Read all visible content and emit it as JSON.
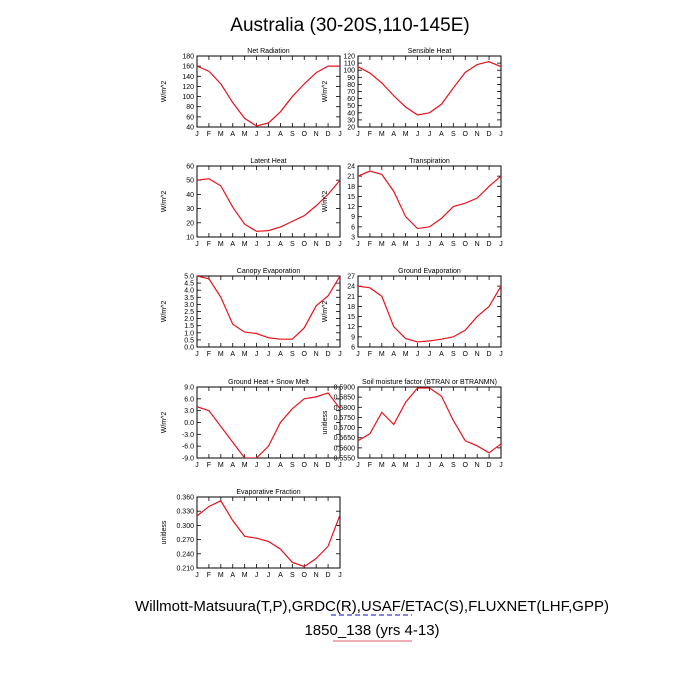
{
  "figure": {
    "title": "Australia (30-20S,110-145E)",
    "footer_line1": "Willmott-Matsuura(T,P),GRDC(R),USAF/ETAC(S),FLUXNET(LHF,GPP)",
    "footer_line2": "1850_138 (yrs 4-13)",
    "line_color": "#e8121a"
  },
  "chart_data": [
    {
      "type": "line",
      "title": "Net Radiation",
      "ylabel": "W/m^2",
      "categories": [
        "J",
        "F",
        "M",
        "A",
        "M",
        "J",
        "J",
        "A",
        "S",
        "O",
        "N",
        "D",
        "J"
      ],
      "values": [
        160,
        150,
        125,
        88,
        57,
        42,
        48,
        70,
        100,
        125,
        147,
        160,
        160
      ],
      "ylim": [
        40,
        180
      ],
      "yticks": [
        "40",
        "60",
        "80",
        "100",
        "120",
        "140",
        "160",
        "180"
      ]
    },
    {
      "type": "line",
      "title": "Sensible Heat",
      "ylabel": "W/m^2",
      "categories": [
        "J",
        "F",
        "M",
        "A",
        "M",
        "J",
        "J",
        "A",
        "S",
        "O",
        "N",
        "D",
        "J"
      ],
      "values": [
        105,
        96,
        82,
        64,
        48,
        37,
        40,
        52,
        75,
        97,
        108,
        112,
        105
      ],
      "ylim": [
        20,
        120
      ],
      "yticks": [
        "20",
        "30",
        "40",
        "50",
        "60",
        "70",
        "80",
        "90",
        "100",
        "110",
        "120"
      ]
    },
    {
      "type": "line",
      "title": "Latent Heat",
      "ylabel": "W/m^2",
      "categories": [
        "J",
        "F",
        "M",
        "A",
        "M",
        "J",
        "J",
        "A",
        "S",
        "O",
        "N",
        "D",
        "J"
      ],
      "values": [
        50,
        51,
        46,
        31,
        19,
        14,
        14.5,
        17,
        21,
        25,
        32,
        40,
        50
      ],
      "ylim": [
        10,
        60
      ],
      "yticks": [
        "10",
        "20",
        "30",
        "40",
        "50",
        "60"
      ]
    },
    {
      "type": "line",
      "title": "Transpiration",
      "ylabel": "W/m^2",
      "categories": [
        "J",
        "F",
        "M",
        "A",
        "M",
        "J",
        "J",
        "A",
        "S",
        "O",
        "N",
        "D",
        "J"
      ],
      "values": [
        21,
        22.5,
        21.5,
        16.5,
        9,
        5.5,
        6,
        8.5,
        12,
        13,
        14.5,
        18,
        21
      ],
      "ylim": [
        3,
        24
      ],
      "yticks": [
        "3",
        "6",
        "9",
        "12",
        "15",
        "18",
        "21",
        "24"
      ]
    },
    {
      "type": "line",
      "title": "Canopy Evaporation",
      "ylabel": "W/m^2",
      "categories": [
        "J",
        "F",
        "M",
        "A",
        "M",
        "J",
        "J",
        "A",
        "S",
        "O",
        "N",
        "D",
        "J"
      ],
      "values": [
        5.0,
        4.8,
        3.5,
        1.6,
        1.05,
        0.95,
        0.65,
        0.55,
        0.55,
        1.35,
        2.9,
        3.6,
        5.0
      ],
      "ylim": [
        0,
        5
      ],
      "yticks": [
        "0.0",
        "0.5",
        "1.0",
        "1.5",
        "2.0",
        "2.5",
        "3.0",
        "3.5",
        "4.0",
        "4.5",
        "5.0"
      ]
    },
    {
      "type": "line",
      "title": "Ground Evaporation",
      "ylabel": "W/m^2",
      "categories": [
        "J",
        "F",
        "M",
        "A",
        "M",
        "J",
        "J",
        "A",
        "S",
        "O",
        "N",
        "D",
        "J"
      ],
      "values": [
        24,
        23.5,
        21,
        12,
        8.5,
        7.5,
        7.8,
        8.3,
        9,
        11,
        15,
        18,
        24
      ],
      "ylim": [
        6,
        27
      ],
      "yticks": [
        "6",
        "9",
        "12",
        "15",
        "18",
        "21",
        "24",
        "27"
      ]
    },
    {
      "type": "line",
      "title": "Ground Heat + Snow Melt",
      "ylabel": "W/m^2",
      "categories": [
        "J",
        "F",
        "M",
        "A",
        "M",
        "J",
        "J",
        "A",
        "S",
        "O",
        "N",
        "D",
        "J"
      ],
      "values": [
        4,
        3,
        -1,
        -5,
        -9,
        -9,
        -6,
        0,
        3.5,
        6,
        6.5,
        7.5,
        3.5
      ],
      "ylim": [
        -9,
        9
      ],
      "yticks": [
        "-9.0",
        "-6.0",
        "-3.0",
        "0.0",
        "3.0",
        "6.0",
        "9.0"
      ]
    },
    {
      "type": "line",
      "title": "Soil moisture factor (BTRAN or BTRANMN)",
      "ylabel": "unitless",
      "categories": [
        "J",
        "F",
        "M",
        "A",
        "M",
        "J",
        "J",
        "A",
        "S",
        "O",
        "N",
        "D",
        "J"
      ],
      "values": [
        0.5635,
        0.567,
        0.5775,
        0.5715,
        0.5825,
        0.5895,
        0.5895,
        0.5855,
        0.5735,
        0.5635,
        0.561,
        0.5575,
        0.562
      ],
      "ylim": [
        0.555,
        0.59
      ],
      "yticks": [
        "0.5550",
        "0.5600",
        "0.5650",
        "0.5700",
        "0.5750",
        "0.5800",
        "0.5850",
        "0.5900"
      ]
    },
    {
      "type": "line",
      "title": "Evaporative Fraction",
      "ylabel": "unitless",
      "categories": [
        "J",
        "F",
        "M",
        "A",
        "M",
        "J",
        "J",
        "A",
        "S",
        "O",
        "N",
        "D",
        "J"
      ],
      "values": [
        0.32,
        0.34,
        0.352,
        0.31,
        0.277,
        0.273,
        0.266,
        0.25,
        0.222,
        0.213,
        0.23,
        0.256,
        0.322
      ],
      "ylim": [
        0.21,
        0.36
      ],
      "yticks": [
        "0.210",
        "0.240",
        "0.270",
        "0.300",
        "0.330",
        "0.360"
      ]
    }
  ]
}
